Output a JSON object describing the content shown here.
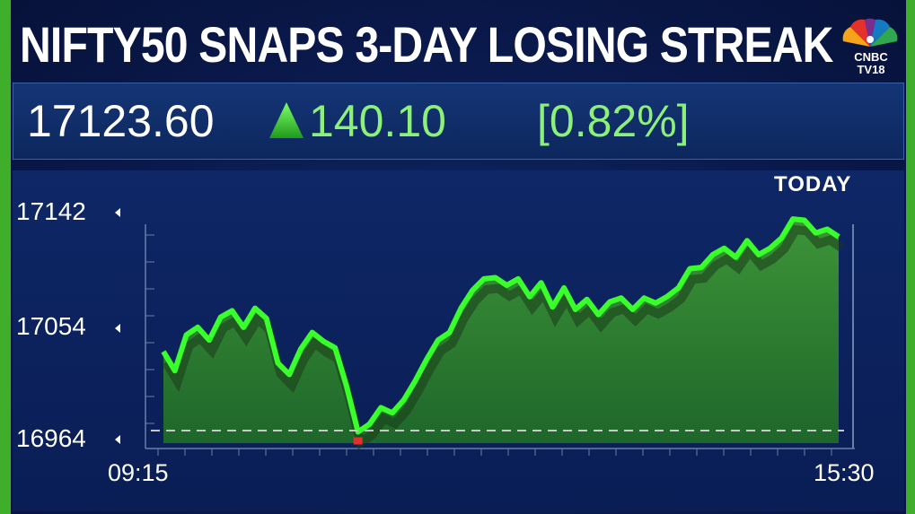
{
  "headline": "NIFTY50 SNAPS 3-DAY LOSING STREAK",
  "logo": {
    "line1": "CNBC",
    "line2": "TV18",
    "icon": "peacock-logo-icon"
  },
  "quote": {
    "price": "17123.60",
    "change": "140.10",
    "change_pct": "[0.82%]",
    "direction_icon": "up-triangle-icon"
  },
  "period_label": "TODAY",
  "colors": {
    "line": "#39ff2a",
    "area": "#2f8a2a",
    "background": "#0a1740",
    "accent": "#8df07a",
    "low_marker": "#e23030"
  },
  "chart_data": {
    "type": "area",
    "title": "",
    "xlabel": "",
    "ylabel": "",
    "x_labels": [
      "09:15",
      "15:30"
    ],
    "y_ticks": [
      17142,
      17054,
      16964
    ],
    "ylim": [
      16964,
      17150
    ],
    "baseline": 16964,
    "series": [
      {
        "values": [
          17033,
          17018,
          17046,
          17052,
          17042,
          17060,
          17065,
          17052,
          17067,
          17059,
          17024,
          17015,
          17035,
          17048,
          17041,
          17036,
          17006,
          16970,
          16976,
          16989,
          16985,
          16995,
          17010,
          17027,
          17042,
          17048,
          17067,
          17081,
          17090,
          17091,
          17085,
          17090,
          17076,
          17087,
          17068,
          17083,
          17066,
          17074,
          17062,
          17072,
          17075,
          17066,
          17075,
          17071,
          17076,
          17083,
          17098,
          17099,
          17109,
          17114,
          17107,
          17120,
          17109,
          17114,
          17122,
          17137,
          17136,
          17126,
          17129,
          17123
        ]
      }
    ]
  }
}
